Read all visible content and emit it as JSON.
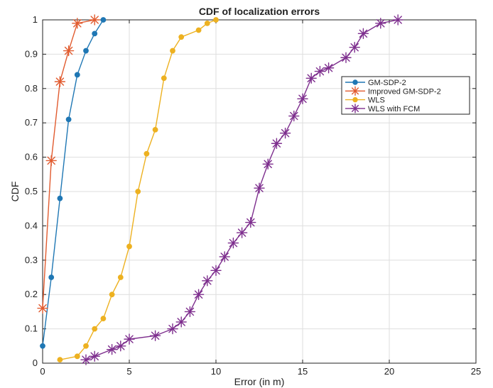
{
  "chart_data": {
    "type": "line",
    "title": "CDF of localization errors",
    "xlabel": "Error (in m)",
    "ylabel": "CDF",
    "xlim": [
      0,
      25
    ],
    "ylim": [
      0,
      1
    ],
    "x_ticks": [
      0,
      5,
      10,
      15,
      20,
      25
    ],
    "y_ticks": [
      0,
      0.1,
      0.2,
      0.3,
      0.4,
      0.5,
      0.6,
      0.7,
      0.8,
      0.9,
      1
    ],
    "x_tick_labels": [
      "0",
      "5",
      "10",
      "15",
      "20",
      "25"
    ],
    "y_tick_labels": [
      "0",
      "0.1",
      "0.2",
      "0.3",
      "0.4",
      "0.5",
      "0.6",
      "0.7",
      "0.8",
      "0.9",
      "1"
    ],
    "grid": true,
    "legend_position": "top-right",
    "series": [
      {
        "name": "GM-SDP-2",
        "color": "#1f77b4",
        "marker": "dot",
        "x": [
          0.0,
          0.5,
          1.0,
          1.5,
          2.0,
          2.5,
          3.0,
          3.5
        ],
        "y": [
          0.05,
          0.25,
          0.48,
          0.71,
          0.84,
          0.91,
          0.96,
          1.0
        ]
      },
      {
        "name": "Improved GM-SDP-2",
        "color": "#e15b2f",
        "marker": "star",
        "x": [
          0.0,
          0.5,
          1.0,
          1.5,
          2.0,
          3.0
        ],
        "y": [
          0.16,
          0.59,
          0.82,
          0.91,
          0.99,
          1.0
        ]
      },
      {
        "name": "WLS",
        "color": "#edb120",
        "marker": "dot",
        "x": [
          1.0,
          2.0,
          2.5,
          3.0,
          3.5,
          4.0,
          4.5,
          5.0,
          5.5,
          6.0,
          6.5,
          7.0,
          7.5,
          8.0,
          9.0,
          9.5,
          10.0
        ],
        "y": [
          0.01,
          0.02,
          0.05,
          0.1,
          0.13,
          0.2,
          0.25,
          0.34,
          0.5,
          0.61,
          0.68,
          0.83,
          0.91,
          0.95,
          0.97,
          0.99,
          1.0
        ]
      },
      {
        "name": "WLS with FCM",
        "color": "#7e2f8e",
        "marker": "star",
        "x": [
          2.5,
          3.0,
          4.0,
          4.5,
          5.0,
          6.5,
          7.5,
          8.0,
          8.5,
          9.0,
          9.5,
          10.0,
          10.5,
          11.0,
          11.5,
          12.0,
          12.5,
          13.0,
          13.5,
          14.0,
          14.5,
          15.0,
          15.5,
          16.0,
          16.5,
          17.5,
          18.0,
          18.5,
          19.5,
          20.5
        ],
        "y": [
          0.01,
          0.02,
          0.04,
          0.05,
          0.07,
          0.08,
          0.1,
          0.12,
          0.15,
          0.2,
          0.24,
          0.27,
          0.31,
          0.35,
          0.38,
          0.41,
          0.51,
          0.58,
          0.64,
          0.67,
          0.72,
          0.77,
          0.83,
          0.85,
          0.86,
          0.89,
          0.92,
          0.96,
          0.99,
          1.0
        ]
      }
    ]
  }
}
